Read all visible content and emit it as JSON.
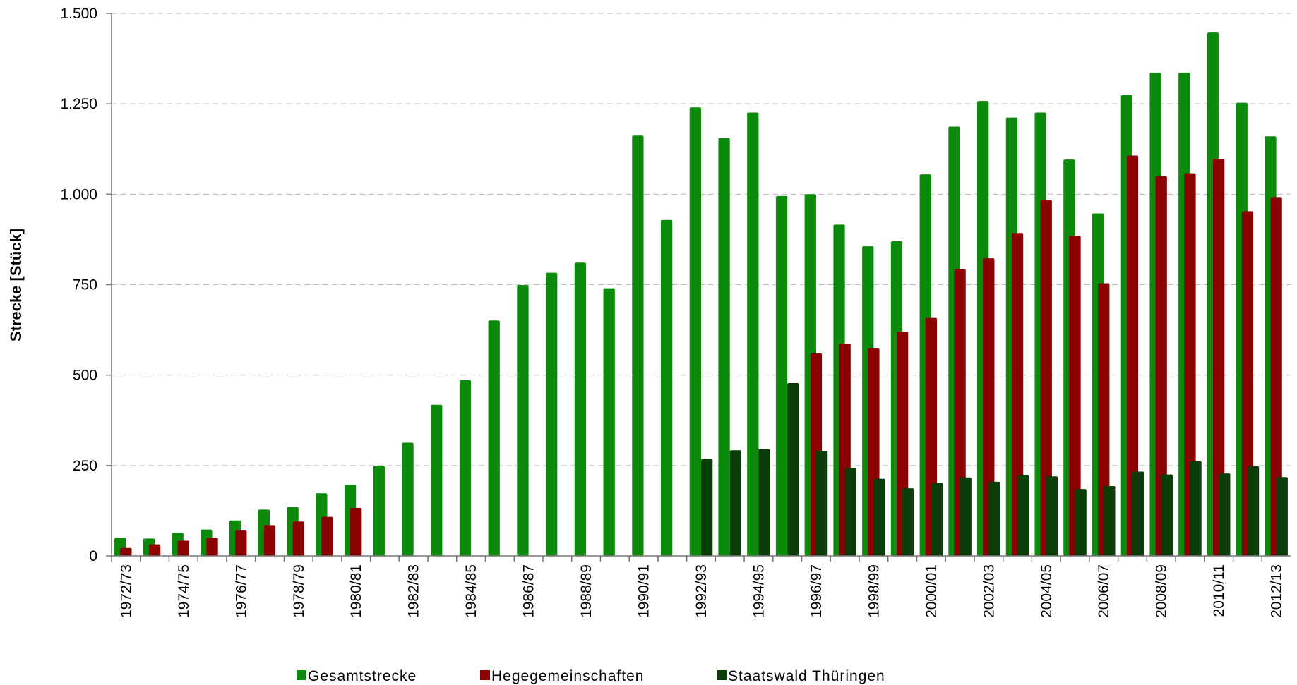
{
  "chart_data": {
    "type": "bar",
    "y_label": "Strecke [Stück]",
    "categories": [
      "1972/73",
      null,
      "1974/75",
      null,
      "1976/77",
      null,
      "1978/79",
      null,
      "1980/81",
      null,
      "1982/83",
      null,
      "1984/85",
      null,
      "1986/87",
      null,
      "1988/89",
      null,
      "1990/91",
      null,
      "1992/93",
      null,
      "1994/95",
      null,
      "1996/97",
      null,
      "1998/99",
      null,
      "2000/01",
      null,
      "2002/03",
      null,
      "2004/05",
      null,
      "2006/07",
      null,
      "2008/09",
      null,
      "2010/11",
      null,
      "2012/13"
    ],
    "series": [
      {
        "name": "Gesamtstrecke",
        "color": "#0b8a0b",
        "values": [
          50,
          48,
          64,
          73,
          98,
          128,
          135,
          173,
          196,
          249,
          313,
          418,
          486,
          651,
          749,
          783,
          811,
          740,
          1162,
          929,
          1240,
          1155,
          1226,
          995,
          1000,
          916,
          856,
          870,
          1055,
          1187,
          1258,
          1212,
          1226,
          1096,
          947,
          1274,
          1336,
          1336,
          1447,
          1253,
          1160
        ]
      },
      {
        "name": "Hegegemeinschaften",
        "color": "#8b0000",
        "values": [
          22,
          32,
          42,
          50,
          72,
          85,
          95,
          108,
          133,
          null,
          null,
          null,
          null,
          null,
          null,
          null,
          null,
          null,
          null,
          null,
          null,
          null,
          null,
          null,
          560,
          587,
          574,
          620,
          658,
          793,
          823,
          893,
          983,
          885,
          754,
          1107,
          1050,
          1058,
          1098,
          953,
          992
        ]
      },
      {
        "name": "Staatswald Thüringen",
        "color": "#0a3d0a",
        "values": [
          null,
          null,
          null,
          null,
          null,
          null,
          null,
          null,
          null,
          null,
          null,
          null,
          null,
          null,
          null,
          null,
          null,
          null,
          null,
          null,
          268,
          292,
          295,
          478,
          290,
          243,
          213,
          187,
          202,
          217,
          205,
          223,
          220,
          185,
          193,
          233,
          225,
          262,
          228,
          248,
          218
        ]
      }
    ],
    "ylim": [
      0,
      1500
    ],
    "yticks": [
      0,
      250,
      500,
      750,
      {
        "value": 1000,
        "label": "1.000"
      },
      {
        "value": 1250,
        "label": "1.250"
      },
      {
        "value": 1500,
        "label": "1.500"
      }
    ],
    "grid": true,
    "legend": "bottom"
  }
}
